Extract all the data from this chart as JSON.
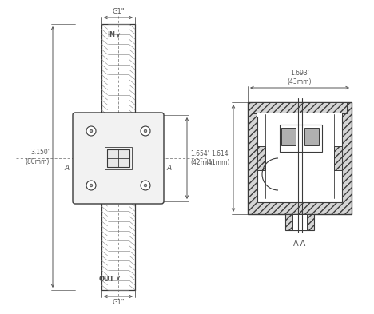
{
  "bg_color": "#ffffff",
  "line_color": "#3a3a3a",
  "dim_color": "#555555",
  "thread_fill": "#e8e8e8",
  "body_fill": "#f0f0f0",
  "hatch_fill": "#c8c8c8",
  "labels": {
    "IN": "IN",
    "OUT": "OUT",
    "A_left": "A",
    "A_right": "A",
    "A_A": "A-A",
    "dim_G1_top": "G1\"",
    "dim_G1_bottom": "G1\"",
    "dim_3150": "3.150'\n(80mm)",
    "dim_1654": "1.654'\n(42mm)",
    "dim_1614": "1.614'\n(41mm)",
    "dim_1693": "1.693'\n(43mm)"
  }
}
